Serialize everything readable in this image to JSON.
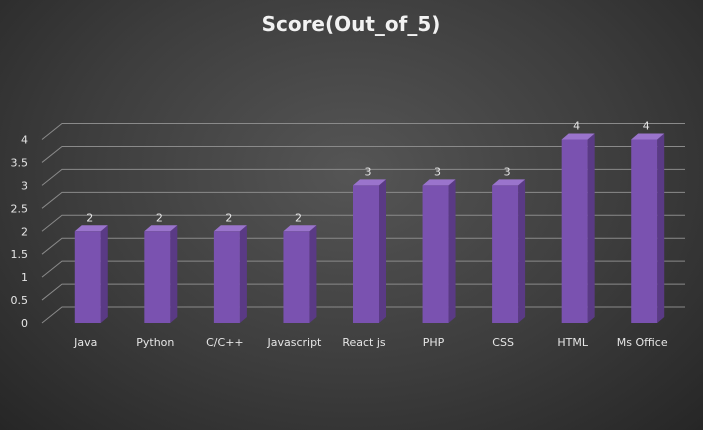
{
  "chart_data": {
    "type": "bar",
    "title": "Score(Out_of_5)",
    "categories": [
      "Java",
      "Python",
      "C/C++",
      "Javascript",
      "React js",
      "PHP",
      "CSS",
      "HTML",
      "Ms Office"
    ],
    "values": [
      2,
      2,
      2,
      2,
      3,
      3,
      3,
      4,
      4
    ],
    "y_ticks": [
      "0",
      "0.5",
      "1",
      "1.5",
      "2",
      "2.5",
      "3",
      "3.5",
      "4"
    ],
    "ylim": [
      0,
      4
    ],
    "grid": true,
    "legend": "none",
    "data_labels": true,
    "bar_style": "3d-column",
    "colors": {
      "bar_front": "#7a52b0",
      "bar_side": "#5a3a85",
      "bar_top": "#9a74cc",
      "grid": "#8a8a8a",
      "text": "#e6e6e6"
    }
  }
}
